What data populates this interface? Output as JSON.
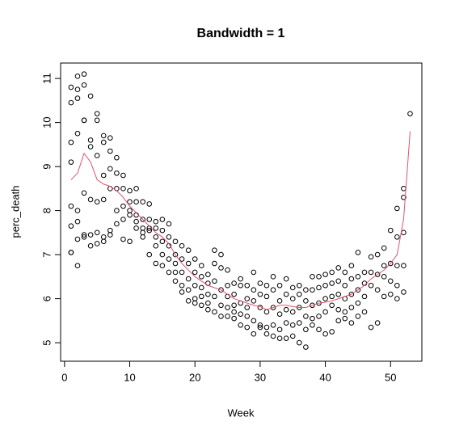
{
  "chart_data": {
    "type": "scatter",
    "title": "Bandwidth = 1",
    "xlabel": "Week",
    "ylabel": "perc_death",
    "xlim": [
      -0.6,
      54.8
    ],
    "ylim": [
      4.58,
      11.35
    ],
    "xticks": [
      0,
      10,
      20,
      30,
      40,
      50
    ],
    "yticks": [
      5,
      6,
      7,
      8,
      9,
      10,
      11
    ],
    "grid": false,
    "series": [
      {
        "kind": "points",
        "color": "#000000",
        "x": [
          1,
          1,
          1,
          1,
          1,
          1,
          1,
          1,
          2,
          2,
          2,
          2,
          2,
          2,
          2,
          2,
          3,
          3,
          3,
          3,
          3,
          3,
          3,
          4,
          4,
          4,
          4,
          4,
          4,
          5,
          5,
          5,
          5,
          5,
          5,
          6,
          6,
          6,
          6,
          6,
          6,
          7,
          7,
          7,
          7,
          7,
          7,
          8,
          8,
          8,
          8,
          8,
          9,
          9,
          9,
          9,
          9,
          10,
          10,
          10,
          10,
          10,
          11,
          11,
          11,
          11,
          11,
          12,
          12,
          12,
          12,
          12,
          13,
          13,
          13,
          13,
          13,
          14,
          14,
          14,
          14,
          14,
          15,
          15,
          15,
          15,
          15,
          16,
          16,
          16,
          16,
          16,
          17,
          17,
          17,
          17,
          17,
          18,
          18,
          18,
          18,
          18,
          19,
          19,
          19,
          19,
          19,
          20,
          20,
          20,
          20,
          20,
          21,
          21,
          21,
          21,
          21,
          22,
          22,
          22,
          22,
          22,
          23,
          23,
          23,
          23,
          23,
          24,
          24,
          24,
          24,
          24,
          25,
          25,
          25,
          25,
          25,
          26,
          26,
          26,
          26,
          26,
          27,
          27,
          27,
          27,
          27,
          28,
          28,
          28,
          28,
          28,
          29,
          29,
          29,
          29,
          29,
          30,
          30,
          30,
          30,
          30,
          31,
          31,
          31,
          31,
          31,
          32,
          32,
          32,
          32,
          32,
          33,
          33,
          33,
          33,
          33,
          34,
          34,
          34,
          34,
          34,
          35,
          35,
          35,
          35,
          35,
          36,
          36,
          36,
          36,
          36,
          37,
          37,
          37,
          37,
          37,
          38,
          38,
          38,
          38,
          38,
          39,
          39,
          39,
          39,
          39,
          40,
          40,
          40,
          40,
          40,
          41,
          41,
          41,
          41,
          41,
          42,
          42,
          42,
          42,
          42,
          43,
          43,
          43,
          43,
          43,
          44,
          44,
          44,
          44,
          44,
          45,
          45,
          45,
          45,
          45,
          46,
          46,
          46,
          46,
          47,
          47,
          47,
          47,
          48,
          48,
          48,
          48,
          49,
          49,
          49,
          49,
          50,
          50,
          50,
          50,
          51,
          51,
          51,
          51,
          51,
          52,
          52,
          52,
          52,
          52,
          53
        ],
        "values": [
          10.8,
          10.45,
          9.55,
          9.1,
          8.1,
          7.65,
          7.05,
          7.05,
          11.05,
          10.75,
          10.55,
          9.75,
          8.0,
          7.75,
          7.35,
          6.75,
          11.1,
          10.85,
          10.05,
          10.05,
          8.4,
          7.45,
          7.4,
          10.6,
          9.6,
          9.45,
          8.25,
          7.45,
          7.2,
          10.2,
          10.05,
          9.25,
          8.2,
          7.5,
          7.25,
          9.7,
          9.55,
          8.8,
          8.25,
          7.4,
          7.3,
          9.65,
          9.35,
          8.95,
          8.5,
          7.55,
          7.45,
          9.2,
          8.85,
          8.5,
          8.0,
          7.7,
          8.8,
          8.5,
          8.1,
          7.8,
          7.35,
          8.45,
          8.2,
          8.0,
          7.9,
          7.3,
          8.5,
          8.2,
          7.9,
          7.75,
          7.6,
          8.2,
          7.8,
          7.6,
          7.5,
          7.4,
          8.15,
          7.8,
          7.6,
          7.55,
          7.0,
          7.75,
          7.6,
          7.4,
          7.2,
          6.8,
          7.8,
          7.55,
          7.3,
          7.0,
          6.75,
          7.7,
          7.4,
          7.2,
          6.9,
          6.6,
          7.3,
          7.0,
          6.8,
          6.6,
          6.4,
          7.2,
          6.9,
          6.6,
          6.3,
          6.15,
          7.1,
          6.8,
          6.45,
          6.2,
          5.95,
          6.9,
          6.6,
          6.3,
          6.0,
          5.9,
          6.75,
          6.5,
          6.25,
          6.05,
          5.85,
          6.55,
          6.35,
          6.1,
          5.9,
          5.75,
          7.1,
          6.8,
          6.4,
          6.05,
          5.7,
          7.0,
          6.7,
          6.2,
          5.85,
          5.6,
          6.65,
          6.3,
          6.05,
          5.8,
          5.6,
          6.35,
          6.1,
          5.85,
          5.7,
          5.55,
          6.45,
          6.3,
          5.9,
          5.65,
          5.4,
          6.3,
          6.0,
          5.8,
          5.6,
          5.35,
          6.6,
          6.2,
          5.95,
          5.5,
          5.2,
          6.35,
          6.1,
          5.8,
          5.4,
          5.35,
          6.3,
          6.05,
          5.7,
          5.35,
          5.2,
          6.5,
          6.2,
          5.8,
          5.4,
          5.15,
          6.3,
          5.95,
          5.65,
          5.3,
          5.1,
          6.45,
          6.1,
          5.75,
          5.45,
          5.1,
          6.25,
          6.0,
          5.7,
          5.4,
          5.15,
          6.3,
          6.1,
          5.8,
          5.45,
          5.0,
          6.2,
          5.95,
          5.6,
          5.3,
          4.9,
          6.5,
          6.2,
          5.85,
          5.55,
          5.4,
          6.5,
          6.25,
          5.9,
          5.6,
          5.3,
          6.55,
          6.3,
          6.0,
          5.7,
          5.2,
          6.6,
          6.35,
          6.05,
          5.85,
          5.25,
          6.7,
          6.4,
          6.1,
          5.75,
          5.5,
          6.6,
          6.3,
          6.0,
          5.7,
          5.55,
          6.75,
          6.45,
          6.1,
          5.8,
          5.45,
          7.05,
          6.5,
          6.2,
          5.9,
          5.6,
          6.6,
          6.35,
          6.05,
          5.7,
          6.95,
          6.6,
          6.3,
          5.35,
          7.0,
          6.55,
          6.2,
          5.45,
          7.15,
          6.75,
          6.5,
          6.05,
          7.55,
          6.8,
          6.4,
          6.1,
          8.05,
          7.4,
          6.75,
          6.3,
          6.0,
          8.5,
          8.3,
          7.5,
          6.75,
          6.15,
          10.2
        ]
      },
      {
        "kind": "line",
        "color": "#df536b",
        "x": [
          1,
          2,
          3,
          4,
          5,
          6,
          7,
          8,
          9,
          10,
          11,
          12,
          13,
          14,
          15,
          16,
          17,
          18,
          19,
          20,
          21,
          22,
          23,
          24,
          25,
          26,
          27,
          28,
          29,
          30,
          31,
          32,
          33,
          34,
          35,
          36,
          37,
          38,
          39,
          40,
          41,
          42,
          43,
          44,
          45,
          46,
          47,
          48,
          49,
          50,
          51,
          52,
          53
        ],
        "values": [
          8.7,
          8.85,
          9.3,
          9.1,
          8.7,
          8.6,
          8.55,
          8.45,
          8.3,
          8.1,
          7.95,
          7.8,
          7.65,
          7.5,
          7.4,
          7.25,
          7.0,
          6.8,
          6.65,
          6.5,
          6.4,
          6.3,
          6.25,
          6.2,
          6.1,
          6.0,
          5.95,
          5.9,
          5.85,
          5.82,
          5.75,
          5.8,
          5.85,
          5.85,
          5.82,
          5.8,
          5.8,
          5.85,
          5.9,
          5.92,
          5.95,
          6.0,
          6.05,
          6.1,
          6.2,
          6.3,
          6.45,
          6.55,
          6.65,
          6.8,
          7.0,
          7.8,
          9.8
        ]
      }
    ]
  }
}
